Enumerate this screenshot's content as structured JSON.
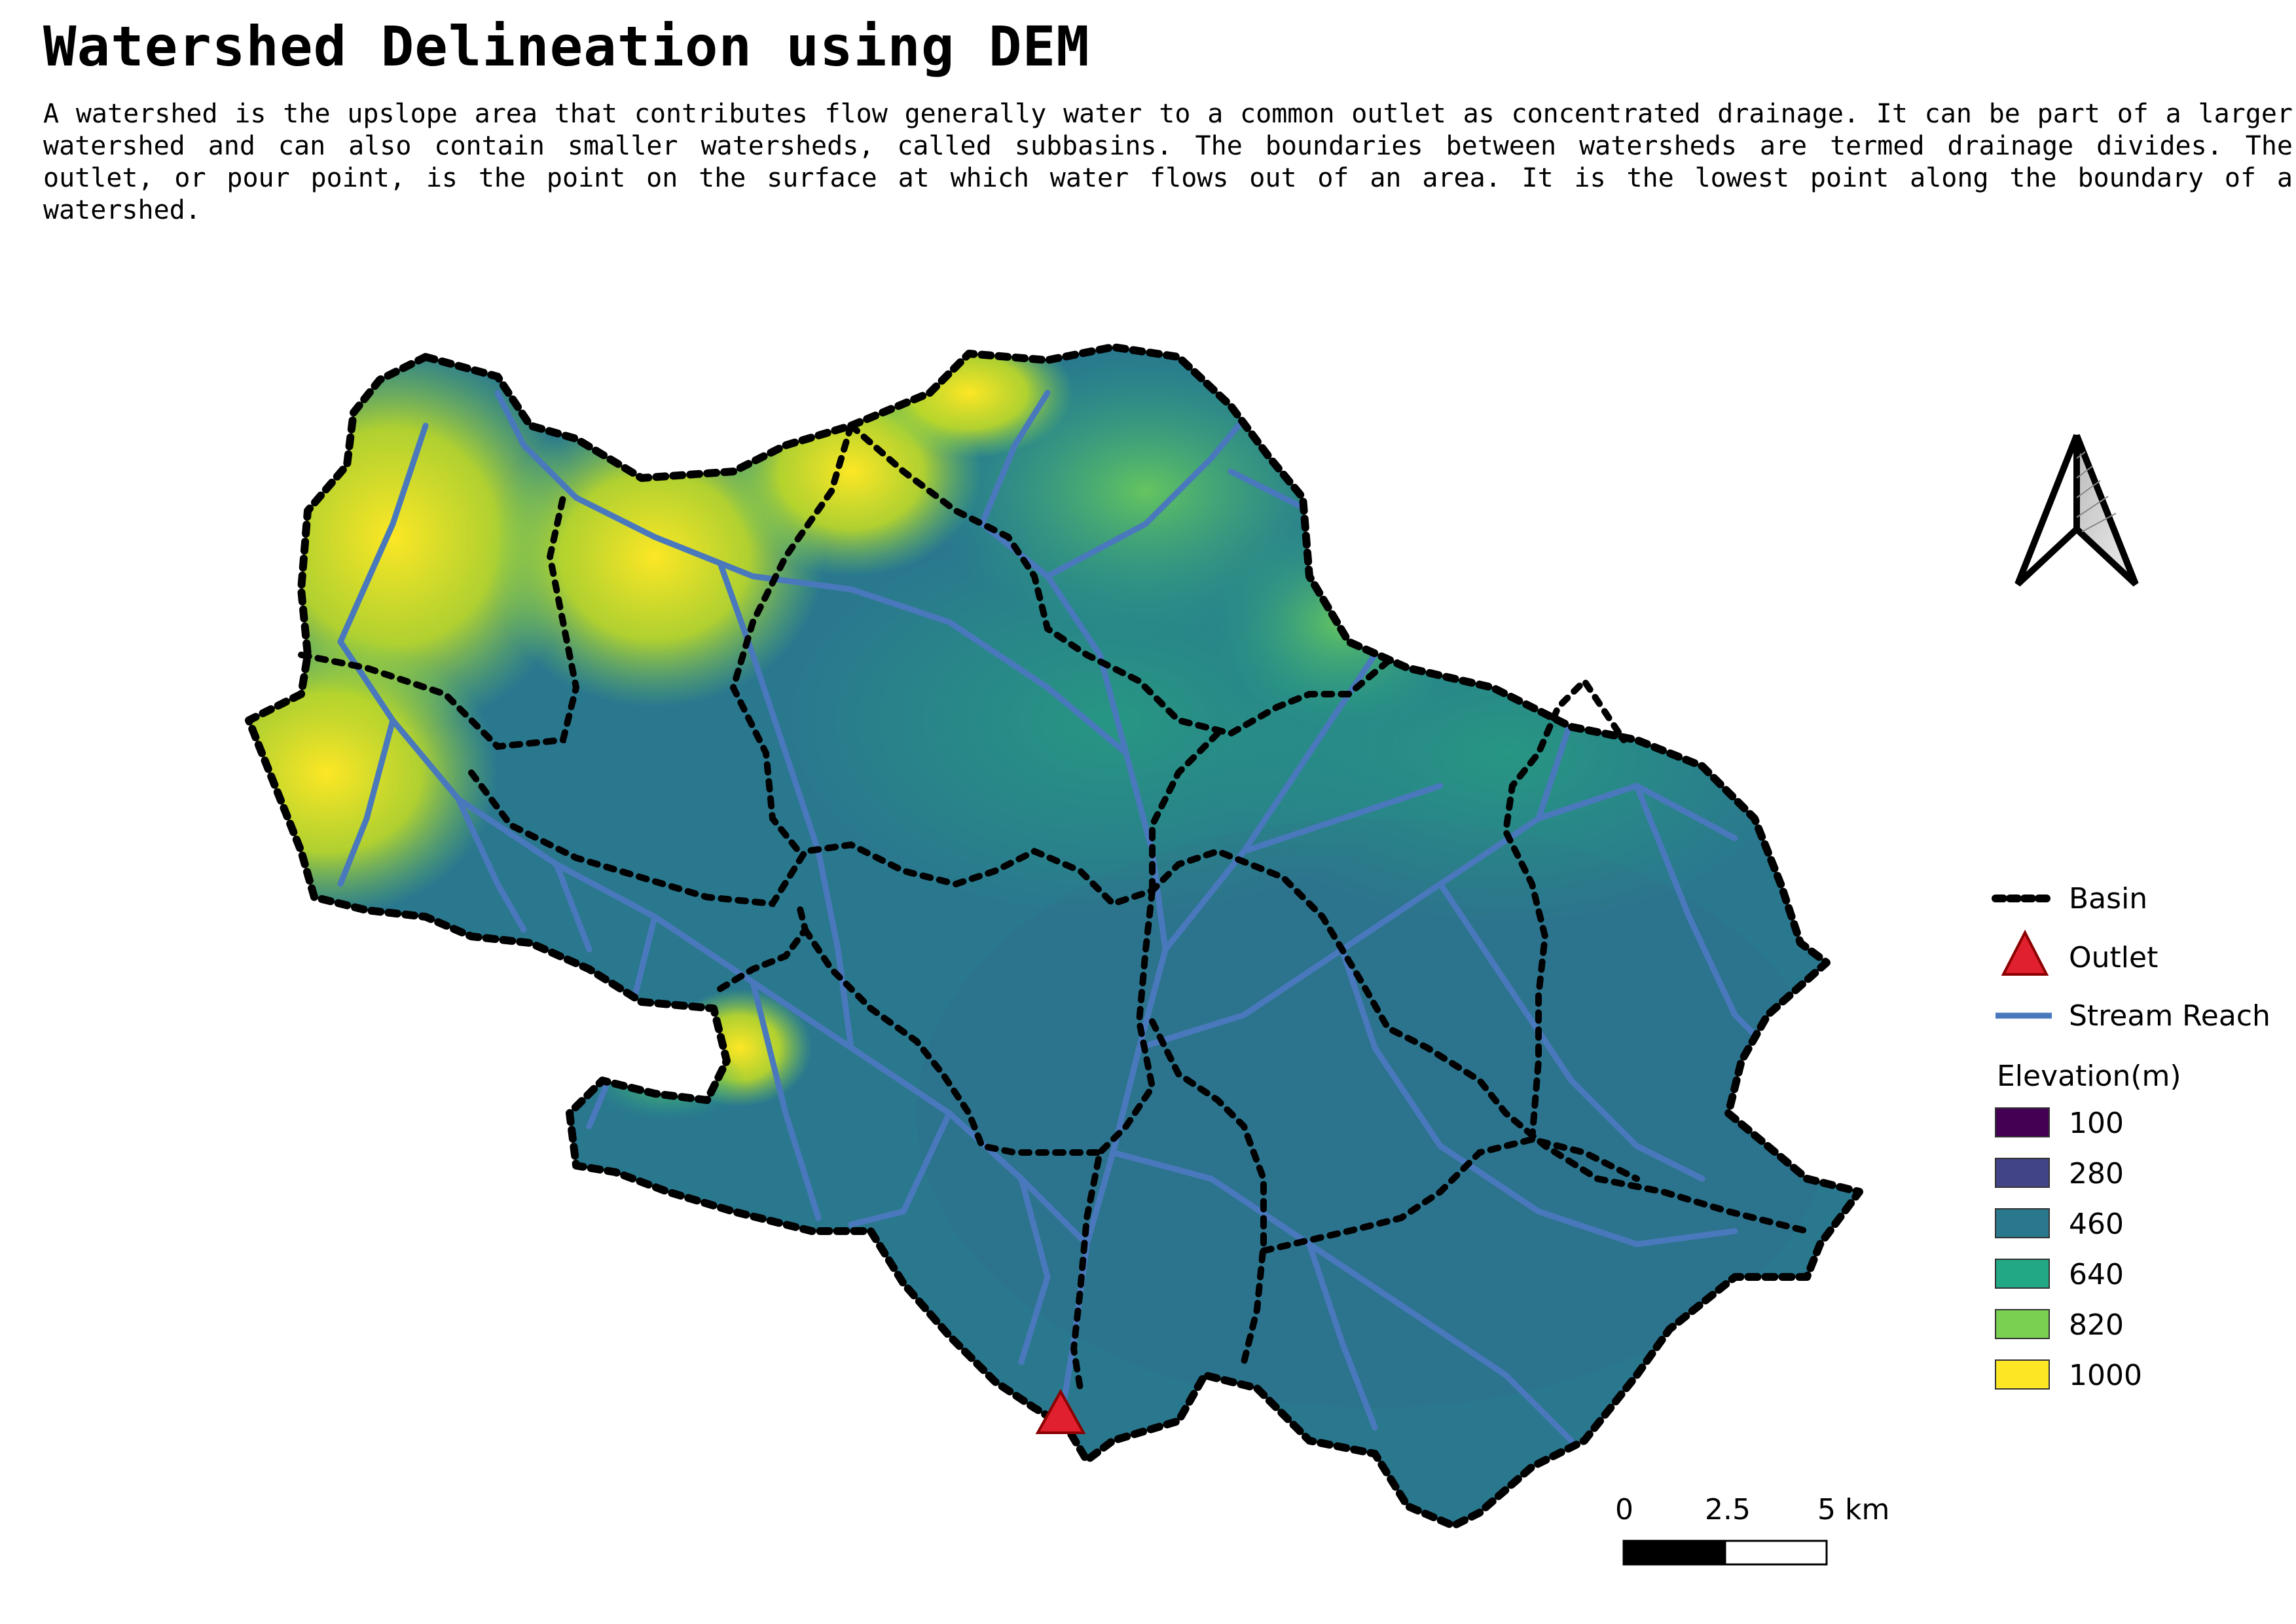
{
  "title": "Watershed Delineation using DEM",
  "description": "A watershed is the upslope area that contributes flow generally water to a common outlet as concentrated drainage. It can be part of a larger watershed and can also contain smaller watersheds, called subbasins. The boundaries between watersheds are termed drainage divides. The outlet, or pour point, is the point on the surface at which water flows out of an area. It is the lowest point along the boundary of a watershed.",
  "legend": {
    "basin_label": "Basin",
    "outlet_label": "Outlet",
    "stream_label": "Stream Reach",
    "elevation_title": "Elevation(m)",
    "elevation_classes": [
      {
        "label": "100",
        "color": "#440154"
      },
      {
        "label": "280",
        "color": "#414487"
      },
      {
        "label": "460",
        "color": "#2a788e"
      },
      {
        "label": "640",
        "color": "#22a884"
      },
      {
        "label": "820",
        "color": "#7ad151"
      },
      {
        "label": "1000",
        "color": "#fde725"
      }
    ]
  },
  "scale_bar": {
    "ticks": [
      "0",
      "2.5",
      "5 km"
    ]
  },
  "colors": {
    "stream": "#4a78bd",
    "outlet_fill": "#e0202f",
    "outlet_stroke": "#8b0000",
    "basin_line": "#000000",
    "dem_low": "#2a788e",
    "dem_high": "#fde725"
  },
  "icons": {
    "north_arrow": "north-arrow-icon",
    "outlet": "triangle-marker-icon"
  }
}
